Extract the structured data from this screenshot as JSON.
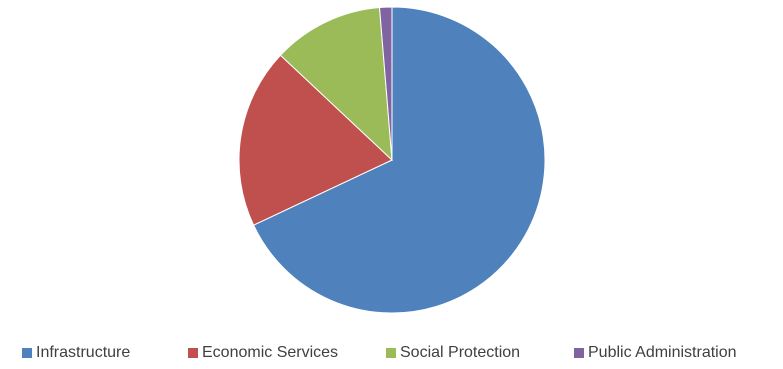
{
  "chart_data": {
    "type": "pie",
    "title": "",
    "start_angle_deg": 0,
    "direction": "clockwise",
    "legend_position": "bottom",
    "categories": [
      "Infrastructure",
      "Economic Services",
      "Social Protection",
      "Public Administration"
    ],
    "values": [
      68.0,
      19.0,
      11.7,
      1.3
    ],
    "unit": "%",
    "colors": [
      "#4F81BD",
      "#C0504D",
      "#9BBB59",
      "#8064A2"
    ]
  }
}
